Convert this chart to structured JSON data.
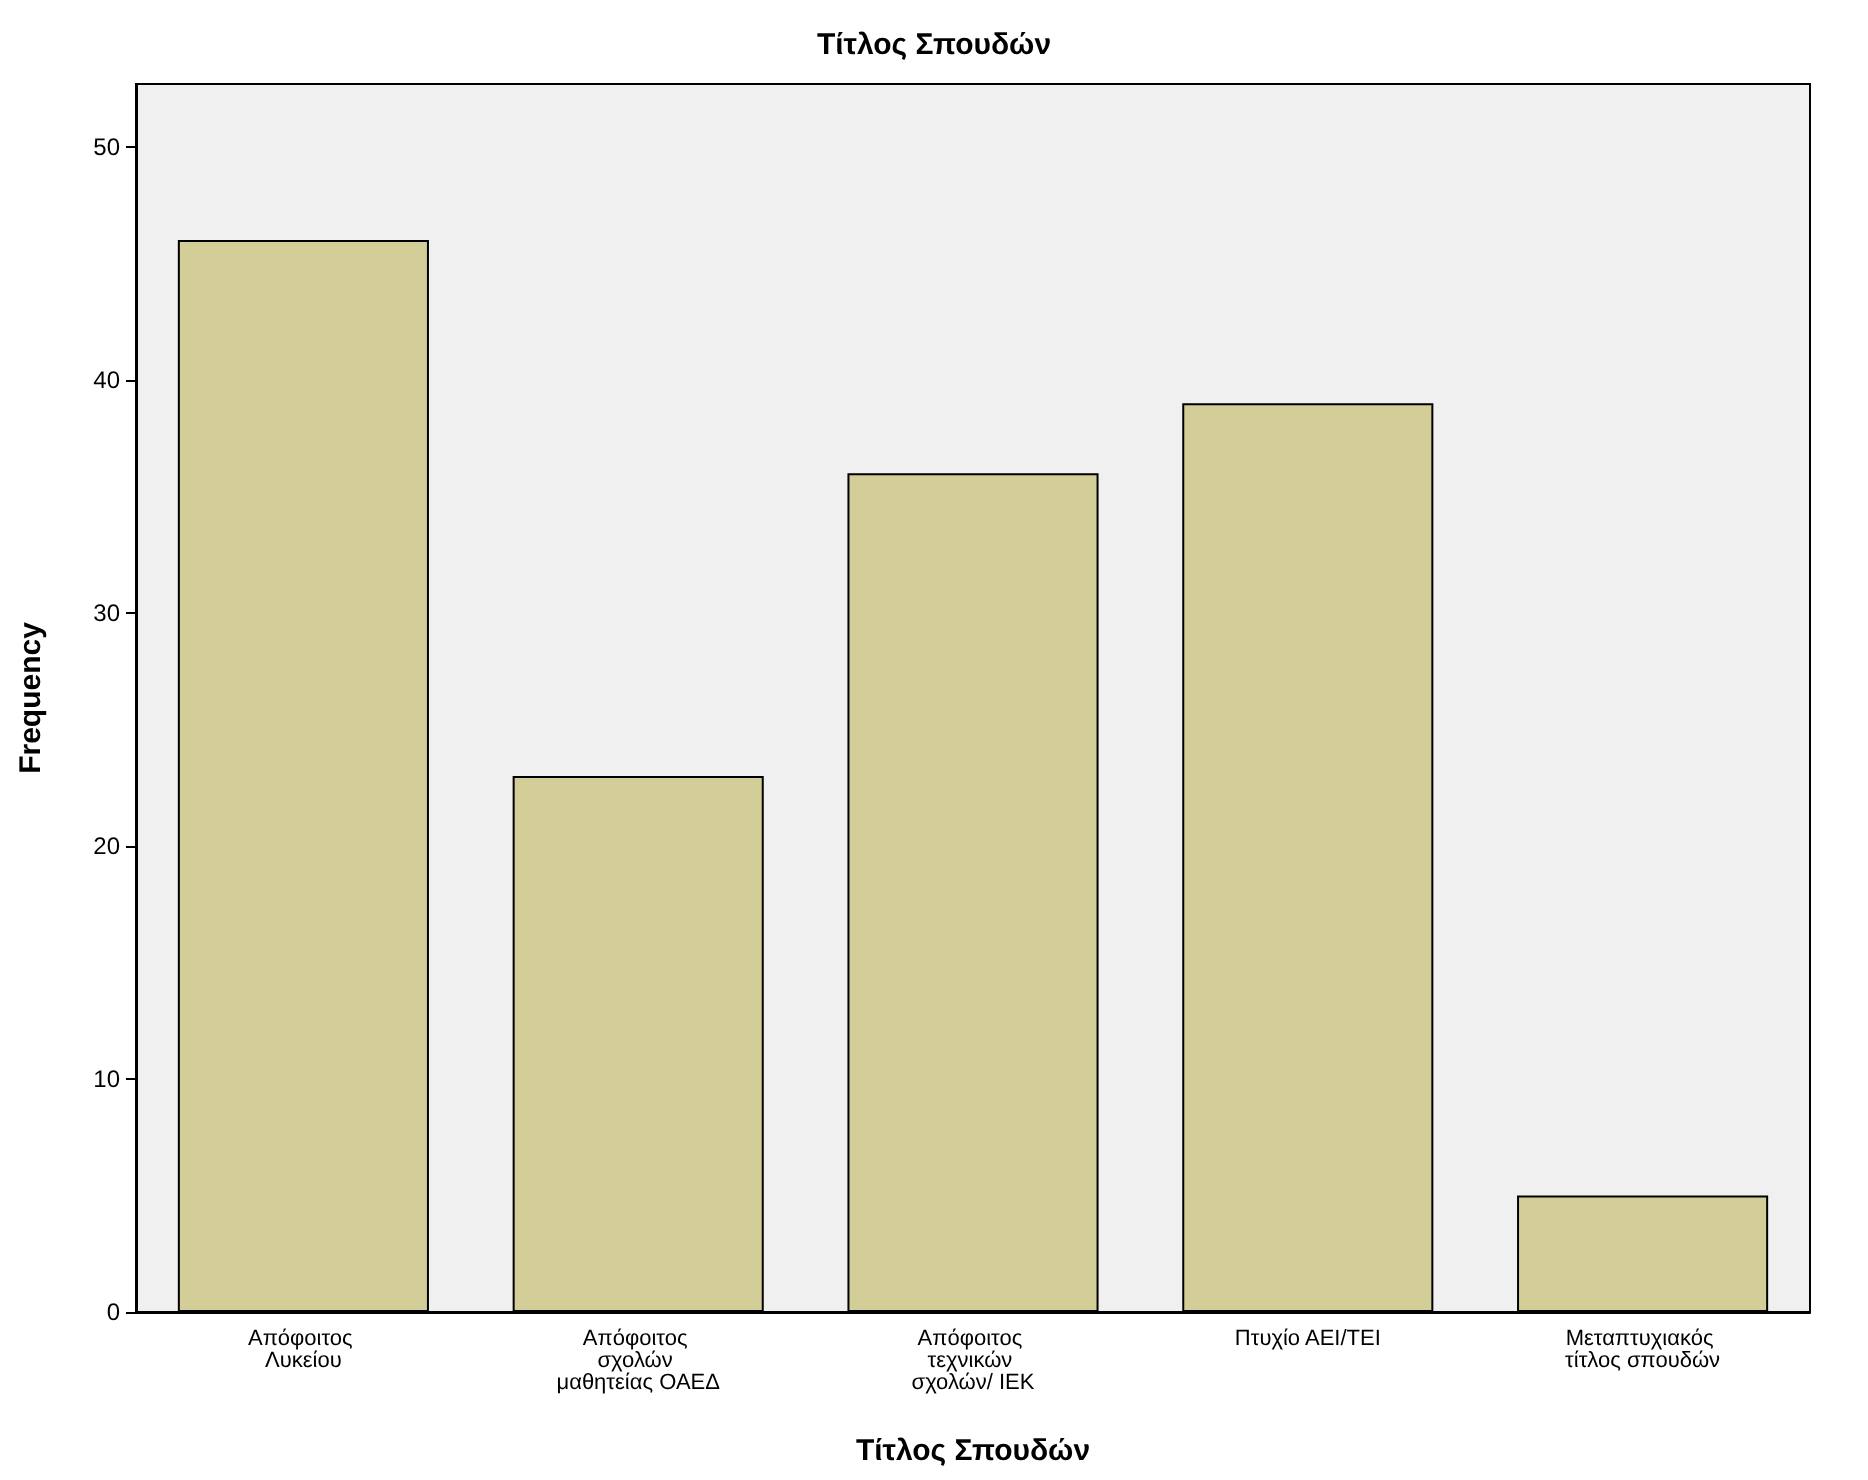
{
  "chart_data": {
    "type": "bar",
    "title": "Τίτλος Σπουδών",
    "xlabel": "Τίτλος Σπουδών",
    "ylabel": "Frequency",
    "categories": [
      "Απόφοιτος Λυκείου",
      "Απόφοιτος σχολών μαθητείας ΟΑΕΔ",
      "Απόφοιτος τεχνικών σχολών/ ΙΕΚ",
      "Πτυχίο ΑΕΙ/ΤΕΙ",
      "Μεταπτυχιακός τίτλος σπουδών"
    ],
    "values": [
      46,
      23,
      36,
      39,
      5
    ],
    "color": "#d3ce97",
    "ylim": [
      0,
      52.7
    ],
    "yticks": [
      0,
      10,
      20,
      30,
      40,
      50
    ],
    "grid": false
  }
}
